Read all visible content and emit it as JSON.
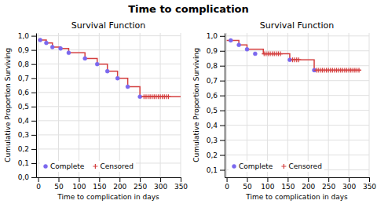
{
  "title": "Time to complication",
  "chart_data": [
    {
      "type": "step",
      "title": "Survival Function",
      "xlabel": "Time to complication in days",
      "ylabel": "Cumulative Proportion Surviving",
      "xlim": [
        -5,
        350
      ],
      "xticks": [
        0,
        50,
        100,
        150,
        200,
        250,
        300,
        350
      ],
      "ylim": [
        0.0,
        1.02
      ],
      "yticks": [
        {
          "value": 0.0,
          "label": "0,0"
        },
        {
          "value": 0.1,
          "label": "0,1"
        },
        {
          "value": 0.2,
          "label": "0,2"
        },
        {
          "value": 0.3,
          "label": "0,3"
        },
        {
          "value": 0.4,
          "label": "0,4"
        },
        {
          "value": 0.5,
          "label": "0,5"
        },
        {
          "value": 0.6,
          "label": "0,6"
        },
        {
          "value": 0.7,
          "label": "0,7"
        },
        {
          "value": 0.8,
          "label": "0,8"
        },
        {
          "value": 0.9,
          "label": "0,9"
        },
        {
          "value": 1.0,
          "label": "1,0"
        }
      ],
      "grid": true,
      "legend": "lower left",
      "series": [
        {
          "type": "line",
          "line_style": "step",
          "color": "#d43f3f",
          "x": [
            0,
            5,
            20,
            35,
            55,
            75,
            90,
            115,
            145,
            170,
            195,
            220,
            250,
            350
          ],
          "values": [
            0.97,
            0.97,
            0.95,
            0.92,
            0.91,
            0.88,
            0.88,
            0.84,
            0.8,
            0.75,
            0.7,
            0.64,
            0.57,
            0.57
          ]
        },
        {
          "name": "Complete",
          "type": "scatter",
          "marker": "circle",
          "color": "#7b68ee",
          "x": [
            5,
            20,
            35,
            55,
            75,
            115,
            145,
            170,
            195,
            220,
            250
          ],
          "values": [
            0.97,
            0.95,
            0.92,
            0.91,
            0.88,
            0.84,
            0.8,
            0.75,
            0.7,
            0.64,
            0.57
          ]
        },
        {
          "name": "Censored",
          "type": "scatter",
          "marker": "plus",
          "color": "#d43f3f",
          "x": [
            260,
            265,
            270,
            275,
            280,
            285,
            290,
            295,
            300,
            305,
            310,
            315,
            320
          ],
          "values": [
            0.57,
            0.57,
            0.57,
            0.57,
            0.57,
            0.57,
            0.57,
            0.57,
            0.57,
            0.57,
            0.57,
            0.57,
            0.57
          ]
        }
      ]
    },
    {
      "type": "step",
      "title": "Survival Function",
      "xlabel": "Time to complication in days",
      "ylabel": "Cumulative Proportion Surviving",
      "xlim": [
        -5,
        350
      ],
      "xticks": [
        0,
        50,
        100,
        150,
        200,
        250,
        300,
        350
      ],
      "ylim": [
        0.05,
        1.02
      ],
      "yticks": [
        {
          "value": 0.1,
          "label": "0,1"
        },
        {
          "value": 0.2,
          "label": "0,2"
        },
        {
          "value": 0.3,
          "label": "0,3"
        },
        {
          "value": 0.4,
          "label": "0,4"
        },
        {
          "value": 0.5,
          "label": "0,5"
        },
        {
          "value": 0.6,
          "label": "0,6"
        },
        {
          "value": 0.7,
          "label": "0,7"
        },
        {
          "value": 0.8,
          "label": "0,8"
        },
        {
          "value": 0.9,
          "label": "0,9"
        },
        {
          "value": 1.0,
          "label": "1,0"
        }
      ],
      "grid": true,
      "legend": "lower left",
      "series": [
        {
          "type": "line",
          "line_style": "step",
          "color": "#d43f3f",
          "x": [
            0,
            10,
            30,
            50,
            70,
            90,
            155,
            200,
            215,
            330
          ],
          "values": [
            0.97,
            0.97,
            0.94,
            0.91,
            0.91,
            0.88,
            0.84,
            0.84,
            0.77,
            0.77
          ]
        },
        {
          "name": "Complete",
          "type": "scatter",
          "marker": "circle",
          "color": "#7b68ee",
          "x": [
            10,
            30,
            50,
            70,
            155,
            215
          ],
          "values": [
            0.97,
            0.94,
            0.91,
            0.88,
            0.84,
            0.77
          ]
        },
        {
          "name": "Censored",
          "type": "scatter",
          "marker": "plus",
          "color": "#d43f3f",
          "x": [
            92,
            97,
            102,
            107,
            112,
            117,
            122,
            127,
            132,
            162,
            167,
            172,
            177,
            220,
            225,
            230,
            235,
            240,
            245,
            250,
            255,
            260,
            265,
            270,
            275,
            280,
            285,
            290,
            295,
            300,
            305,
            310,
            315,
            320,
            325
          ],
          "values": [
            0.88,
            0.88,
            0.88,
            0.88,
            0.88,
            0.88,
            0.88,
            0.88,
            0.88,
            0.84,
            0.84,
            0.84,
            0.84,
            0.77,
            0.77,
            0.77,
            0.77,
            0.77,
            0.77,
            0.77,
            0.77,
            0.77,
            0.77,
            0.77,
            0.77,
            0.77,
            0.77,
            0.77,
            0.77,
            0.77,
            0.77,
            0.77,
            0.77,
            0.77,
            0.77
          ]
        }
      ]
    }
  ]
}
